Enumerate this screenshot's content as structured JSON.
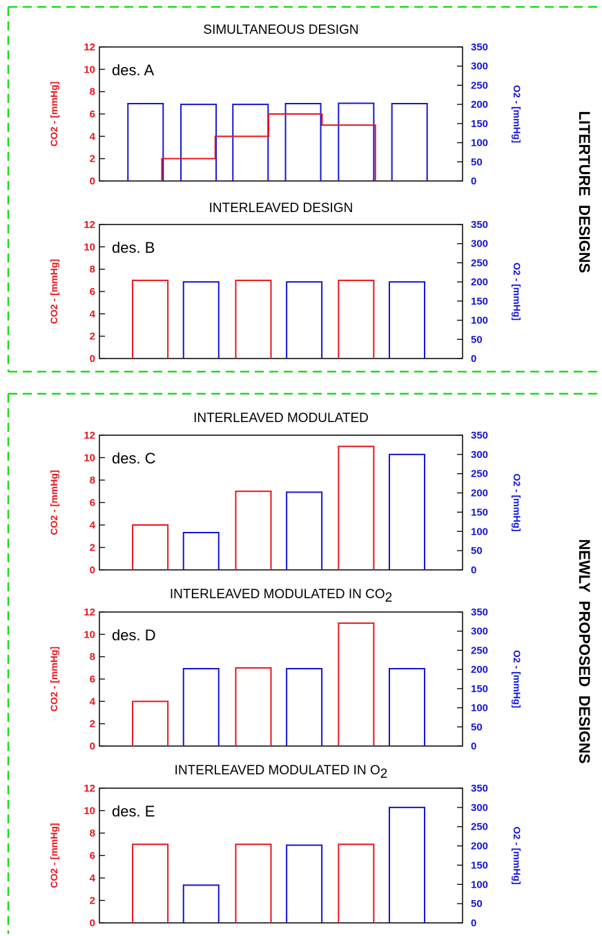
{
  "colors": {
    "co2": "#e8141c",
    "o2": "#1414d2",
    "frame": "#1adc1a",
    "axis": "#000000"
  },
  "groups": [
    {
      "label": "LITERTURE  DESIGNS"
    },
    {
      "label": "NEWLY  PROPOSED  DESIGNS"
    }
  ],
  "chart_data": [
    {
      "type": "bar",
      "title": "SIMULTANEOUS DESIGN",
      "title_sub": "",
      "annotation": "des. A",
      "ylabel_left": "CO2 - [mmHg]",
      "ylabel_right": "O2 - [mmHg]",
      "ylim_left": [
        0,
        12
      ],
      "ylim_right": [
        0,
        350
      ],
      "yticks_left": [
        0,
        2,
        4,
        6,
        8,
        10,
        12
      ],
      "yticks_right": [
        0,
        50,
        100,
        150,
        200,
        250,
        300,
        350
      ],
      "co2_step": {
        "x_start": 0.172,
        "x_end": 0.76,
        "values": [
          2,
          4,
          6,
          5
        ]
      },
      "bars": [
        {
          "series": "O2",
          "x": 0.127,
          "value": 202
        },
        {
          "series": "O2",
          "x": 0.273,
          "value": 200
        },
        {
          "series": "O2",
          "x": 0.416,
          "value": 200
        },
        {
          "series": "O2",
          "x": 0.561,
          "value": 202
        },
        {
          "series": "O2",
          "x": 0.707,
          "value": 203
        },
        {
          "series": "O2",
          "x": 0.854,
          "value": 202
        }
      ]
    },
    {
      "type": "bar",
      "title": "INTERLEAVED DESIGN",
      "title_sub": "",
      "annotation": "des. B",
      "ylabel_left": "CO2 - [mmHg]",
      "ylabel_right": "O2 - [mmHg]",
      "ylim_left": [
        0,
        12
      ],
      "ylim_right": [
        0,
        350
      ],
      "yticks_left": [
        0,
        2,
        4,
        6,
        8,
        10,
        12
      ],
      "yticks_right": [
        0,
        50,
        100,
        150,
        200,
        250,
        300,
        350
      ],
      "bars": [
        {
          "series": "CO2",
          "x": 0.14,
          "value": 7
        },
        {
          "series": "O2",
          "x": 0.28,
          "value": 200
        },
        {
          "series": "CO2",
          "x": 0.424,
          "value": 7
        },
        {
          "series": "O2",
          "x": 0.564,
          "value": 200
        },
        {
          "series": "CO2",
          "x": 0.707,
          "value": 7
        },
        {
          "series": "O2",
          "x": 0.847,
          "value": 200
        }
      ]
    },
    {
      "type": "bar",
      "title": "INTERLEAVED MODULATED",
      "title_sub": "",
      "annotation": "des. C",
      "ylabel_left": "CO2 - [mmHg]",
      "ylabel_right": "O2 - [mmHg]",
      "ylim_left": [
        0,
        12
      ],
      "ylim_right": [
        0,
        350
      ],
      "yticks_left": [
        0,
        2,
        4,
        6,
        8,
        10,
        12
      ],
      "yticks_right": [
        0,
        50,
        100,
        150,
        200,
        250,
        300,
        350
      ],
      "bars": [
        {
          "series": "CO2",
          "x": 0.14,
          "value": 4
        },
        {
          "series": "O2",
          "x": 0.28,
          "value": 97
        },
        {
          "series": "CO2",
          "x": 0.424,
          "value": 7
        },
        {
          "series": "O2",
          "x": 0.564,
          "value": 202
        },
        {
          "series": "CO2",
          "x": 0.707,
          "value": 11
        },
        {
          "series": "O2",
          "x": 0.847,
          "value": 300
        }
      ]
    },
    {
      "type": "bar",
      "title": "INTERLEAVED MODULATED IN CO",
      "title_sub": "2",
      "annotation": "des. D",
      "ylabel_left": "CO2 - [mmHg]",
      "ylabel_right": "O2 - [mmHg]",
      "ylim_left": [
        0,
        12
      ],
      "ylim_right": [
        0,
        350
      ],
      "yticks_left": [
        0,
        2,
        4,
        6,
        8,
        10,
        12
      ],
      "yticks_right": [
        0,
        50,
        100,
        150,
        200,
        250,
        300,
        350
      ],
      "bars": [
        {
          "series": "CO2",
          "x": 0.14,
          "value": 4
        },
        {
          "series": "O2",
          "x": 0.28,
          "value": 202
        },
        {
          "series": "CO2",
          "x": 0.424,
          "value": 7
        },
        {
          "series": "O2",
          "x": 0.564,
          "value": 202
        },
        {
          "series": "CO2",
          "x": 0.707,
          "value": 11
        },
        {
          "series": "O2",
          "x": 0.847,
          "value": 202
        }
      ]
    },
    {
      "type": "bar",
      "title": "INTERLEAVED MODULATED IN O",
      "title_sub": "2",
      "annotation": "des. E",
      "ylabel_left": "CO2 - [mmHg]",
      "ylabel_right": "O2 - [mmHg]",
      "ylim_left": [
        0,
        12
      ],
      "ylim_right": [
        0,
        350
      ],
      "yticks_left": [
        0,
        2,
        4,
        6,
        8,
        10,
        12
      ],
      "yticks_right": [
        0,
        50,
        100,
        150,
        200,
        250,
        300,
        350
      ],
      "bars": [
        {
          "series": "CO2",
          "x": 0.14,
          "value": 7
        },
        {
          "series": "O2",
          "x": 0.28,
          "value": 98
        },
        {
          "series": "CO2",
          "x": 0.424,
          "value": 7
        },
        {
          "series": "O2",
          "x": 0.564,
          "value": 202
        },
        {
          "series": "CO2",
          "x": 0.707,
          "value": 7
        },
        {
          "series": "O2",
          "x": 0.847,
          "value": 300
        }
      ]
    }
  ]
}
